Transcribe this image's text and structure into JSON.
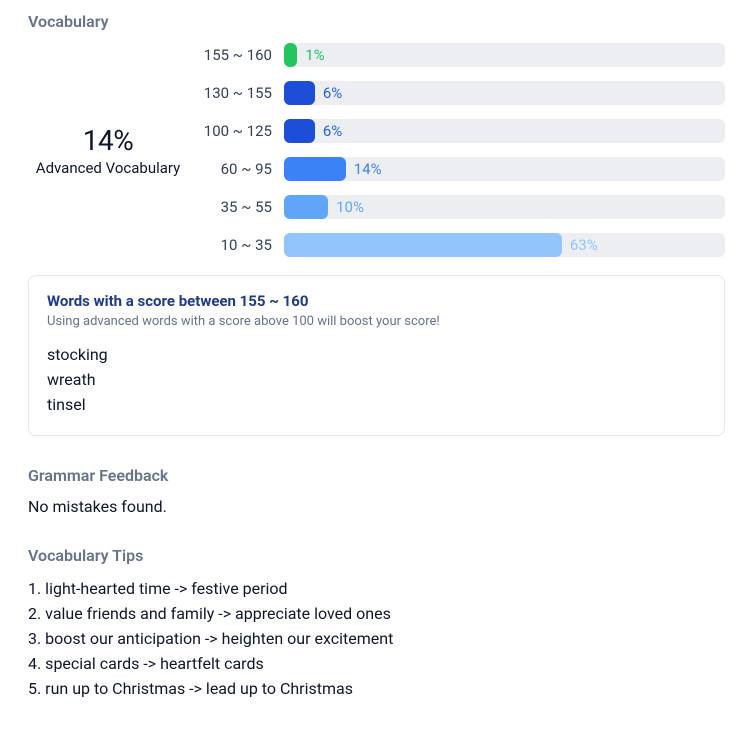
{
  "colors": {
    "track": "#eceef1",
    "section_title": "#64748b",
    "text": "#0f172a",
    "card_border": "#e5e7eb",
    "words_title": "#1e3a8a",
    "words_sub": "#64748b"
  },
  "vocabulary": {
    "section_label": "Vocabulary",
    "advanced_pct": "14%",
    "advanced_label": "Advanced Vocabulary",
    "bars": [
      {
        "range": "155 ~ 160",
        "pct": "1%",
        "width_pct": 3,
        "fill": "#22c55e",
        "label_color": "#22c55e"
      },
      {
        "range": "130 ~ 155",
        "pct": "6%",
        "width_pct": 7,
        "fill": "#1d4ed8",
        "label_color": "#2563eb"
      },
      {
        "range": "100 ~ 125",
        "pct": "6%",
        "width_pct": 7,
        "fill": "#1d4ed8",
        "label_color": "#2563eb"
      },
      {
        "range": "60 ~ 95",
        "pct": "14%",
        "width_pct": 14,
        "fill": "#3b82f6",
        "label_color": "#3b82f6"
      },
      {
        "range": "35 ~ 55",
        "pct": "10%",
        "width_pct": 10,
        "fill": "#60a5fa",
        "label_color": "#60a5fa"
      },
      {
        "range": "10 ~ 35",
        "pct": "63%",
        "width_pct": 63,
        "fill": "#93c5fd",
        "label_color": "#93c5fd"
      }
    ]
  },
  "words_card": {
    "title": "Words with a score between 155 ~ 160",
    "subtitle": "Using advanced words with a score above 100 will boost your score!",
    "words": [
      "stocking",
      "wreath",
      "tinsel"
    ]
  },
  "grammar": {
    "section_label": "Grammar Feedback",
    "message": "No mistakes found."
  },
  "tips": {
    "section_label": "Vocabulary Tips",
    "items": [
      "light-hearted time -> festive period",
      "value friends and family -> appreciate loved ones",
      "boost our anticipation -> heighten our excitement",
      "special cards -> heartfelt cards",
      "run up to Christmas -> lead up to Christmas"
    ]
  }
}
